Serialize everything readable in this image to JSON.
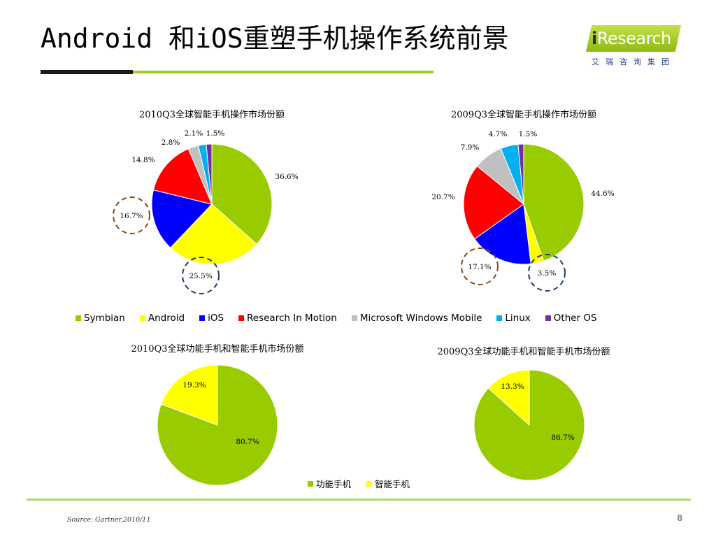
{
  "slide": {
    "title": "Android 和iOS重塑手机操作系统前景",
    "source": "Source: Gartner,2010/11",
    "page_number": "8"
  },
  "logo": {
    "word_i": "i",
    "word_rest": "Research",
    "subtitle": "艾瑞咨询集团"
  },
  "colors": {
    "Symbian": "#99cc00",
    "Android": "#ffff00",
    "iOS": "#0000ff",
    "Research In Motion": "#ff0000",
    "Microsoft Windows Mobile": "#c0c0c0",
    "Linux": "#00b0f0",
    "Other OS": "#7030a0",
    "功能手机": "#99cc00",
    "智能手机": "#ffff00",
    "highlight_brown": "#8b4513",
    "highlight_navy": "#1f3864"
  },
  "legend_os": [
    "Symbian",
    "Android",
    "iOS",
    "Research In Motion",
    "Microsoft Windows Mobile",
    "Linux",
    "Other OS"
  ],
  "legend_phone": [
    "功能手机",
    "智能手机"
  ],
  "chart_data": [
    {
      "type": "pie",
      "title": "2010Q3全球智能手机操作市场份额",
      "categories": [
        "Symbian",
        "Android",
        "iOS",
        "Research In Motion",
        "Microsoft Windows Mobile",
        "Linux",
        "Other OS"
      ],
      "values": [
        36.6,
        25.5,
        16.7,
        14.8,
        2.8,
        2.1,
        1.5
      ],
      "labels": [
        "36.6%",
        "25.5%",
        "16.7%",
        "14.8%",
        "2.8%",
        "2.1%",
        "1.5%"
      ],
      "highlighted": [
        "Android",
        "iOS"
      ],
      "legend": "bottom"
    },
    {
      "type": "pie",
      "title": "2009Q3全球智能手机操作市场份额",
      "categories": [
        "Symbian",
        "Android",
        "iOS",
        "Research In Motion",
        "Microsoft Windows Mobile",
        "Linux",
        "Other OS"
      ],
      "values": [
        44.6,
        3.5,
        17.1,
        20.7,
        7.9,
        4.7,
        1.5
      ],
      "labels": [
        "44.6%",
        "3.5%",
        "17.1%",
        "20.7%",
        "7.9%",
        "4.7%",
        "1.5%"
      ],
      "highlighted": [
        "Android",
        "iOS"
      ],
      "legend": "bottom"
    },
    {
      "type": "pie",
      "title": "2010Q3全球功能手机和智能手机市场份额",
      "categories": [
        "功能手机",
        "智能手机"
      ],
      "values": [
        80.7,
        19.3
      ],
      "labels": [
        "80.7%",
        "19.3%"
      ],
      "legend": "bottom"
    },
    {
      "type": "pie",
      "title": "2009Q3全球功能手机和智能手机市场份额",
      "categories": [
        "功能手机",
        "智能手机"
      ],
      "values": [
        86.7,
        13.3
      ],
      "labels": [
        "86.7%",
        "13.3%"
      ],
      "legend": "bottom"
    }
  ]
}
